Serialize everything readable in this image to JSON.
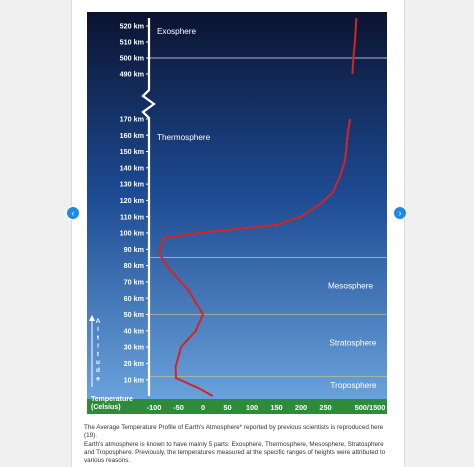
{
  "nav": {
    "prev_icon": "‹",
    "next_icon": "›"
  },
  "chart_data": {
    "type": "line",
    "series": [
      {
        "values": [
          {
            "temp": 20,
            "alt": 0
          },
          {
            "temp": -10,
            "alt": 5
          },
          {
            "temp": -55,
            "alt": 11
          },
          {
            "temp": -56,
            "alt": 18
          },
          {
            "temp": -45,
            "alt": 30
          },
          {
            "temp": -15,
            "alt": 40
          },
          {
            "temp": 0,
            "alt": 50
          },
          {
            "temp": -30,
            "alt": 65
          },
          {
            "temp": -75,
            "alt": 80
          },
          {
            "temp": -90,
            "alt": 88
          },
          {
            "temp": -80,
            "alt": 97
          },
          {
            "temp": -10,
            "alt": 100
          },
          {
            "temp": 150,
            "alt": 105
          },
          {
            "temp": 200,
            "alt": 110
          },
          {
            "temp": 240,
            "alt": 118
          },
          {
            "temp": 265,
            "alt": 125
          },
          {
            "temp": 280,
            "alt": 135
          },
          {
            "temp": 290,
            "alt": 145
          },
          {
            "temp": 295,
            "alt": 160
          },
          {
            "temp": 300,
            "alt": 170
          },
          {
            "temp": 305,
            "alt": 490
          },
          {
            "temp": 307,
            "alt": 500
          },
          {
            "temp": 310,
            "alt": 510
          },
          {
            "temp": 313,
            "alt": 525
          }
        ]
      }
    ],
    "y_ticks": [
      {
        "v": 10,
        "label": "10 km"
      },
      {
        "v": 20,
        "label": "20 km"
      },
      {
        "v": 30,
        "label": "30 km"
      },
      {
        "v": 40,
        "label": "40 km"
      },
      {
        "v": 50,
        "label": "50 km"
      },
      {
        "v": 60,
        "label": "60 km"
      },
      {
        "v": 70,
        "label": "70 km"
      },
      {
        "v": 80,
        "label": "80 km"
      },
      {
        "v": 90,
        "label": "90 km"
      },
      {
        "v": 100,
        "label": "100 km"
      },
      {
        "v": 110,
        "label": "110 km"
      },
      {
        "v": 120,
        "label": "120 km"
      },
      {
        "v": 130,
        "label": "130 km"
      },
      {
        "v": 140,
        "label": "140 km"
      },
      {
        "v": 150,
        "label": "150 km"
      },
      {
        "v": 160,
        "label": "160 km"
      },
      {
        "v": 170,
        "label": "170 km"
      },
      {
        "v": 490,
        "label": "490 km"
      },
      {
        "v": 500,
        "label": "500 km"
      },
      {
        "v": 510,
        "label": "510 km"
      },
      {
        "v": 520,
        "label": "520 km"
      }
    ],
    "x_ticks": [
      {
        "v": -100,
        "label": "-100"
      },
      {
        "v": -50,
        "label": "-50"
      },
      {
        "v": 0,
        "label": "0"
      },
      {
        "v": 50,
        "label": "50"
      },
      {
        "v": 100,
        "label": "100"
      },
      {
        "v": 150,
        "label": "150"
      },
      {
        "v": 200,
        "label": "200"
      },
      {
        "v": 250,
        "label": "250"
      }
    ],
    "x_tick_far": {
      "v": 300,
      "label": "500/1500"
    },
    "layer_boundaries": [
      12,
      50,
      85,
      500
    ],
    "layers": [
      {
        "name": "Exosphere",
        "alt": 515,
        "temp": -94
      },
      {
        "name": "Thermosphere",
        "alt": 157,
        "temp": -94
      },
      {
        "name": "Mesosphere",
        "alt": 66,
        "temp": 255
      },
      {
        "name": "Stratosphere",
        "alt": 31,
        "temp": 258
      },
      {
        "name": "Troposphere",
        "alt": 5,
        "temp": 260
      }
    ],
    "xlabel": "Temperature (Celsius)",
    "xlabel_lines": [
      "Temperature",
      "(Celsius)"
    ],
    "ylabel": "Altitude",
    "ylabel_chars": [
      "A",
      "l",
      "t",
      "i",
      "t",
      "u",
      "d",
      "e"
    ],
    "colors": {
      "line": "#d42424",
      "axis": "#ffffff",
      "boundary": "#b0b8a0",
      "sky_top": "#0b1330",
      "sky_mid": "#1d4a92",
      "sky_bottom": "#6fa8e0",
      "ground": "#2e8b3b"
    }
  },
  "caption": {
    "line1": "The Average Temperature Profile of Earth's Atmosphere* reported by previous scientists is reproduced here (19).",
    "line2": "Earth's atmosphere is known to have mainly 5 parts: Exosphere, Thermosphere, Mesosphere, Stratosphere and Troposphere. Previously, the temperatures measured at the specific ranges of heights were attributed to various reasons."
  }
}
